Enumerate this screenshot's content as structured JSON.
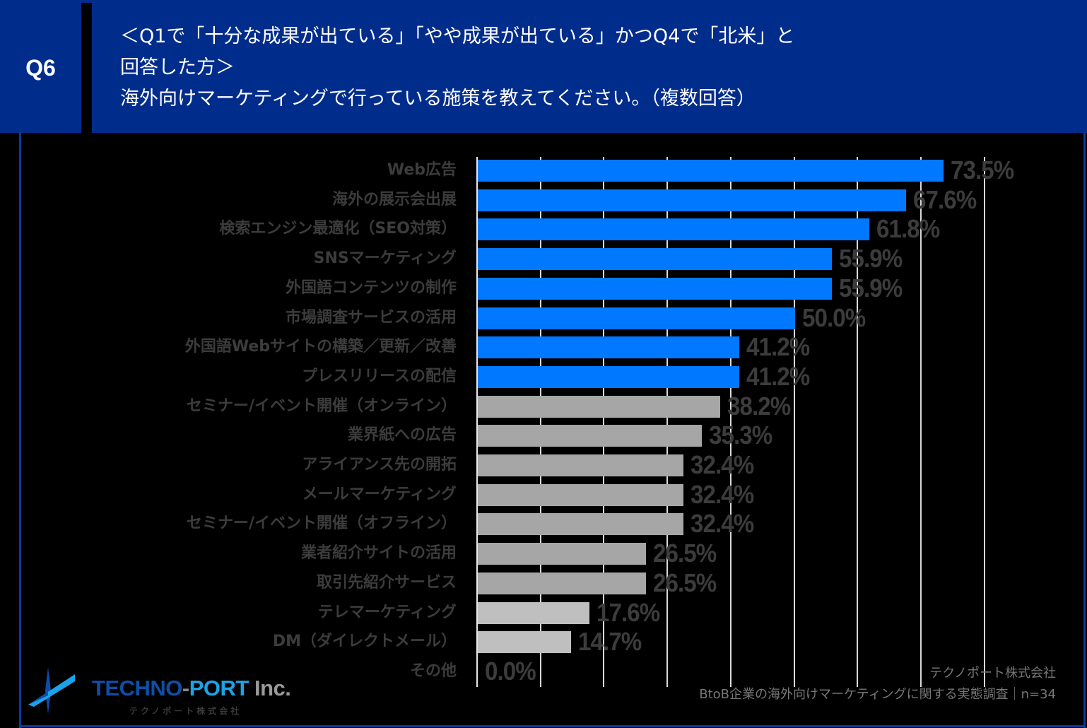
{
  "header": {
    "question_id": "Q6",
    "title_lines": [
      "＜Q1で「十分な成果が出ている」「やや成果が出ている」かつQ4で「北米」と",
      "回答した方＞",
      "海外向けマーケティングで行っている施策を教えてください。（複数回答）"
    ],
    "background_color": "#002D8C"
  },
  "source": {
    "company": "テクノポート株式会社",
    "survey": "BtoB企業の海外向けマーケティングに関する実態調査｜n=34"
  },
  "logo": {
    "name_part1": "TECHNO",
    "dash": "-",
    "name_part2": "PORT",
    "name_part3": " Inc.",
    "subtitle": "テクノポート株式会社"
  },
  "chart_data": {
    "type": "bar",
    "orientation": "horizontal",
    "title": "海外向けマーケティングで行っている施策を教えてください。（複数回答）",
    "xlabel": "",
    "ylabel": "",
    "xlim": [
      0,
      80
    ],
    "grid": true,
    "gridline_step": 10,
    "value_suffix": "%",
    "categories": [
      "Web広告",
      "海外の展示会出展",
      "検索エンジン最適化（SEO対策）",
      "SNSマーケティング",
      "外国語コンテンツの制作",
      "市場調査サービスの活用",
      "外国語Webサイトの構築／更新／改善",
      "プレスリリースの配信",
      "セミナー/イベント開催（オンライン）",
      "業界紙への広告",
      "アライアンス先の開拓",
      "メールマーケティング",
      "セミナー/イベント開催（オフライン）",
      "業者紹介サイトの活用",
      "取引先紹介サービス",
      "テレマーケティング",
      "DM（ダイレクトメール）",
      "その他"
    ],
    "values": [
      73.5,
      67.6,
      61.8,
      55.9,
      55.9,
      50.0,
      41.2,
      41.2,
      38.2,
      35.3,
      32.4,
      32.4,
      32.4,
      26.5,
      26.5,
      17.6,
      14.7,
      0.0
    ],
    "labels": [
      "73.5%",
      "67.6%",
      "61.8%",
      "55.9%",
      "55.9%",
      "50.0%",
      "41.2%",
      "41.2%",
      "38.2%",
      "35.3%",
      "32.4%",
      "32.4%",
      "32.4%",
      "26.5%",
      "26.5%",
      "17.6%",
      "14.7%",
      "0.0%"
    ],
    "colors": [
      "#0078FF",
      "#0078FF",
      "#0078FF",
      "#0078FF",
      "#0078FF",
      "#0078FF",
      "#0078FF",
      "#0078FF",
      "#A6A6A6",
      "#A6A6A6",
      "#A6A6A6",
      "#A6A6A6",
      "#A6A6A6",
      "#A6A6A6",
      "#A6A6A6",
      "#BFBFBF",
      "#BFBFBF",
      "#BFBFBF"
    ],
    "n": 34
  }
}
